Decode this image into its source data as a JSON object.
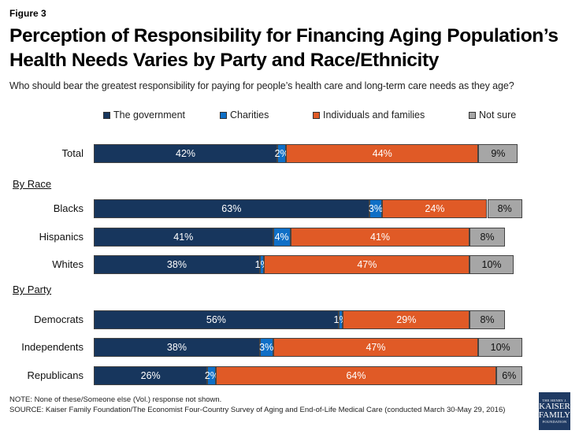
{
  "figure_label": "Figure 3",
  "chart_data": {
    "type": "bar",
    "orientation": "horizontal",
    "stacked": true,
    "title": "Perception of Responsibility for Financing Aging Population’s Health Needs Varies by Party and Race/Ethnicity",
    "subtitle": "Who should bear the greatest responsibility for paying for people’s health care and long-term care needs as they age?",
    "xlabel": "",
    "ylabel": "",
    "xlim": [
      0,
      100
    ],
    "grid": false,
    "legend_position": "top",
    "series": [
      {
        "name": "The government",
        "color": "#17365d",
        "values": [
          42,
          63,
          41,
          38,
          56,
          38,
          26
        ]
      },
      {
        "name": "Charities",
        "color": "#0f6fc6",
        "values": [
          2,
          3,
          4,
          1,
          1,
          3,
          2
        ]
      },
      {
        "name": "Individuals and families",
        "color": "#e05a26",
        "values": [
          44,
          24,
          41,
          47,
          29,
          47,
          64
        ]
      },
      {
        "name": "Not sure",
        "color": "#a6a6a6",
        "values": [
          9,
          8,
          8,
          10,
          8,
          10,
          6
        ]
      }
    ],
    "categories": [
      "Total",
      "Blacks",
      "Hispanics",
      "Whites",
      "Democrats",
      "Independents",
      "Republicans"
    ],
    "groups": [
      {
        "label": "",
        "categories": [
          "Total"
        ]
      },
      {
        "label": "By Race",
        "categories": [
          "Blacks",
          "Hispanics",
          "Whites"
        ]
      },
      {
        "label": "By Party",
        "categories": [
          "Democrats",
          "Independents",
          "Republicans"
        ]
      }
    ],
    "value_suffix": "%"
  },
  "sections": {
    "race": "By Race",
    "party": "By Party"
  },
  "footer": {
    "note": "NOTE: None of these/Someone else (Vol.) response not shown.",
    "source": "SOURCE: Kaiser Family Foundation/The Economist Four-Country Survey of Aging and End-of-Life Medical Care (conducted March 30-May 29, 2016)"
  },
  "logo": {
    "line1": "THE HENRY J.",
    "line2": "KAISER",
    "line3": "FAMILY",
    "line4": "FOUNDATION",
    "color": "#1f3a63"
  }
}
